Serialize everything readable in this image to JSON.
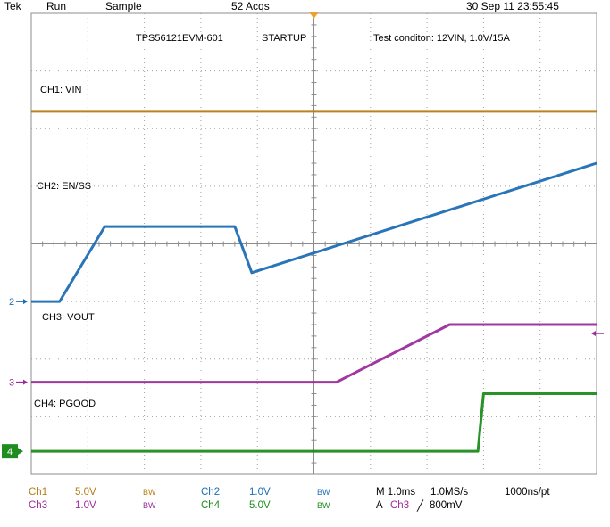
{
  "status_bar": {
    "brand": "Tek",
    "run_state": "Run",
    "acq_mode": "Sample",
    "acq_count": "52 Acqs",
    "datetime": "30 Sep 11 23:55:45"
  },
  "annotations": {
    "board": "TPS56121EVM-601",
    "mode": "STARTUP",
    "test_condition": "Test conditon: 12VIN, 1.0V/15A"
  },
  "channels": [
    {
      "id": "1",
      "label": "CH1: VIN",
      "scale": "5.0V",
      "name": "Ch1",
      "bw": "BW",
      "color": "#b47c14"
    },
    {
      "id": "2",
      "label": "CH2: EN/SS",
      "scale": "1.0V",
      "name": "Ch2",
      "bw": "BW",
      "color": "#1e6eb4"
    },
    {
      "id": "3",
      "label": "CH3: VOUT",
      "scale": "1.0V",
      "name": "Ch3",
      "bw": "BW",
      "color": "#9c2c9c"
    },
    {
      "id": "4",
      "label": "CH4: PGOOD",
      "scale": "5.0V",
      "name": "Ch4",
      "bw": "BW",
      "color": "#1e8c1e"
    }
  ],
  "timebase": {
    "horizontal": "M 1.0ms",
    "sample_rate": "1.0MS/s",
    "resolution": "1000ns/pt",
    "trigger_prefix": "A",
    "trigger_source": "Ch3",
    "trigger_slope": "╱",
    "trigger_level": "800mV"
  },
  "chart_data": {
    "type": "line",
    "x_unit": "ms",
    "x_range": [
      0,
      10
    ],
    "y_unit": "div",
    "y_range": [
      0,
      8
    ],
    "grid": true,
    "series": [
      {
        "name": "CH1: VIN",
        "x": [
          0,
          10
        ],
        "y": [
          6.3,
          6.3
        ]
      },
      {
        "name": "CH2: EN/SS",
        "x": [
          0,
          0.5,
          1.3,
          3.6,
          3.9,
          10
        ],
        "y": [
          3.0,
          3.0,
          4.3,
          4.3,
          3.5,
          5.4
        ]
      },
      {
        "name": "CH3: VOUT",
        "x": [
          0,
          5.4,
          5.6,
          7.4,
          10
        ],
        "y": [
          1.6,
          1.6,
          1.7,
          2.6,
          2.6
        ]
      },
      {
        "name": "CH4: PGOOD",
        "x": [
          0,
          7.9,
          8.0,
          10
        ],
        "y": [
          0.4,
          0.4,
          1.4,
          1.4
        ]
      }
    ]
  }
}
